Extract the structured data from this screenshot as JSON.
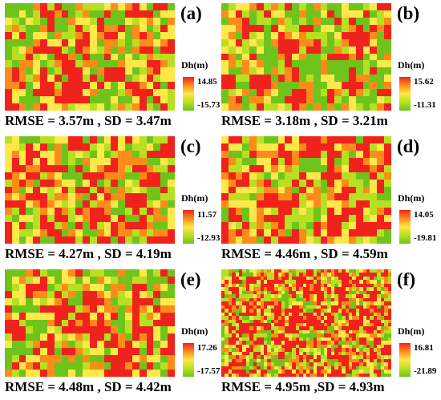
{
  "panels": [
    {
      "letter": "(a)",
      "unit": "Dh(m)",
      "max": "14.85",
      "min": "-15.73",
      "metric": "RMSE = 3.57m , SD = 3.47m",
      "seed": 11,
      "bias": 0.55,
      "fine": false
    },
    {
      "letter": "(b)",
      "unit": "Dh(m)",
      "max": "15.62",
      "min": "-11.31",
      "metric": "RMSE = 3.18m , SD = 3.21m",
      "seed": 23,
      "bias": 0.5,
      "fine": false
    },
    {
      "letter": "(c)",
      "unit": "Dh(m)",
      "max": "11.57",
      "min": "-12.93",
      "metric": "RMSE = 4.27m , SD = 4.19m",
      "seed": 37,
      "bias": 0.6,
      "fine": false
    },
    {
      "letter": "(d)",
      "unit": "Dh(m)",
      "max": "14.05",
      "min": "-19.81",
      "metric": "RMSE = 4.46m , SD = 4.59m",
      "seed": 41,
      "bias": 0.65,
      "fine": false
    },
    {
      "letter": "(e)",
      "unit": "Dh(m)",
      "max": "17.26",
      "min": "-17.57",
      "metric": "RMSE = 4.48m , SD = 4.42m",
      "seed": 53,
      "bias": 0.6,
      "fine": false
    },
    {
      "letter": "(f)",
      "unit": "Dh(m)",
      "max": "16.81",
      "min": "-21.89",
      "metric": "RMSE = 4.95m ,SD = 4.93m",
      "seed": 67,
      "bias": 0.72,
      "fine": true
    }
  ],
  "colors": {
    "high": "#f0231c",
    "mid_high": "#ff8c1a",
    "mid": "#ffe84a",
    "mid_low": "#b8e022",
    "low": "#6fc41c"
  }
}
